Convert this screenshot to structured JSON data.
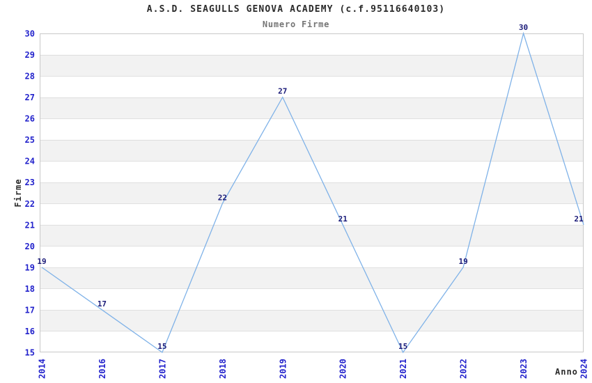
{
  "chart_data": {
    "type": "line",
    "title": "A.S.D. SEAGULLS GENOVA ACADEMY (c.f.95116640103)",
    "subtitle": "Numero Firme",
    "xlabel": "Anno",
    "ylabel": "Firme",
    "categories": [
      "2014",
      "2016",
      "2017",
      "2018",
      "2019",
      "2020",
      "2021",
      "2022",
      "2023",
      "2024"
    ],
    "values": [
      19,
      17,
      15,
      22,
      27,
      21,
      15,
      19,
      30,
      21
    ],
    "ylim": [
      15,
      30
    ],
    "ytick_step": 1,
    "grid": "horizontal-bands-alternating",
    "legend": "none",
    "point_labels_visible": true,
    "x_tick_rotation_deg": -90,
    "colors": {
      "line": "#7fb2e8",
      "tick_label": "#2323cc",
      "point_label": "#1a1a78",
      "band": "#f2f2f2",
      "gridline": "#e0e0e0",
      "plot_border": "#c9c9c9",
      "title": "#2b2b2b",
      "subtitle": "#757575",
      "axis_title": "#2b2b2b",
      "background": "#ffffff"
    }
  }
}
